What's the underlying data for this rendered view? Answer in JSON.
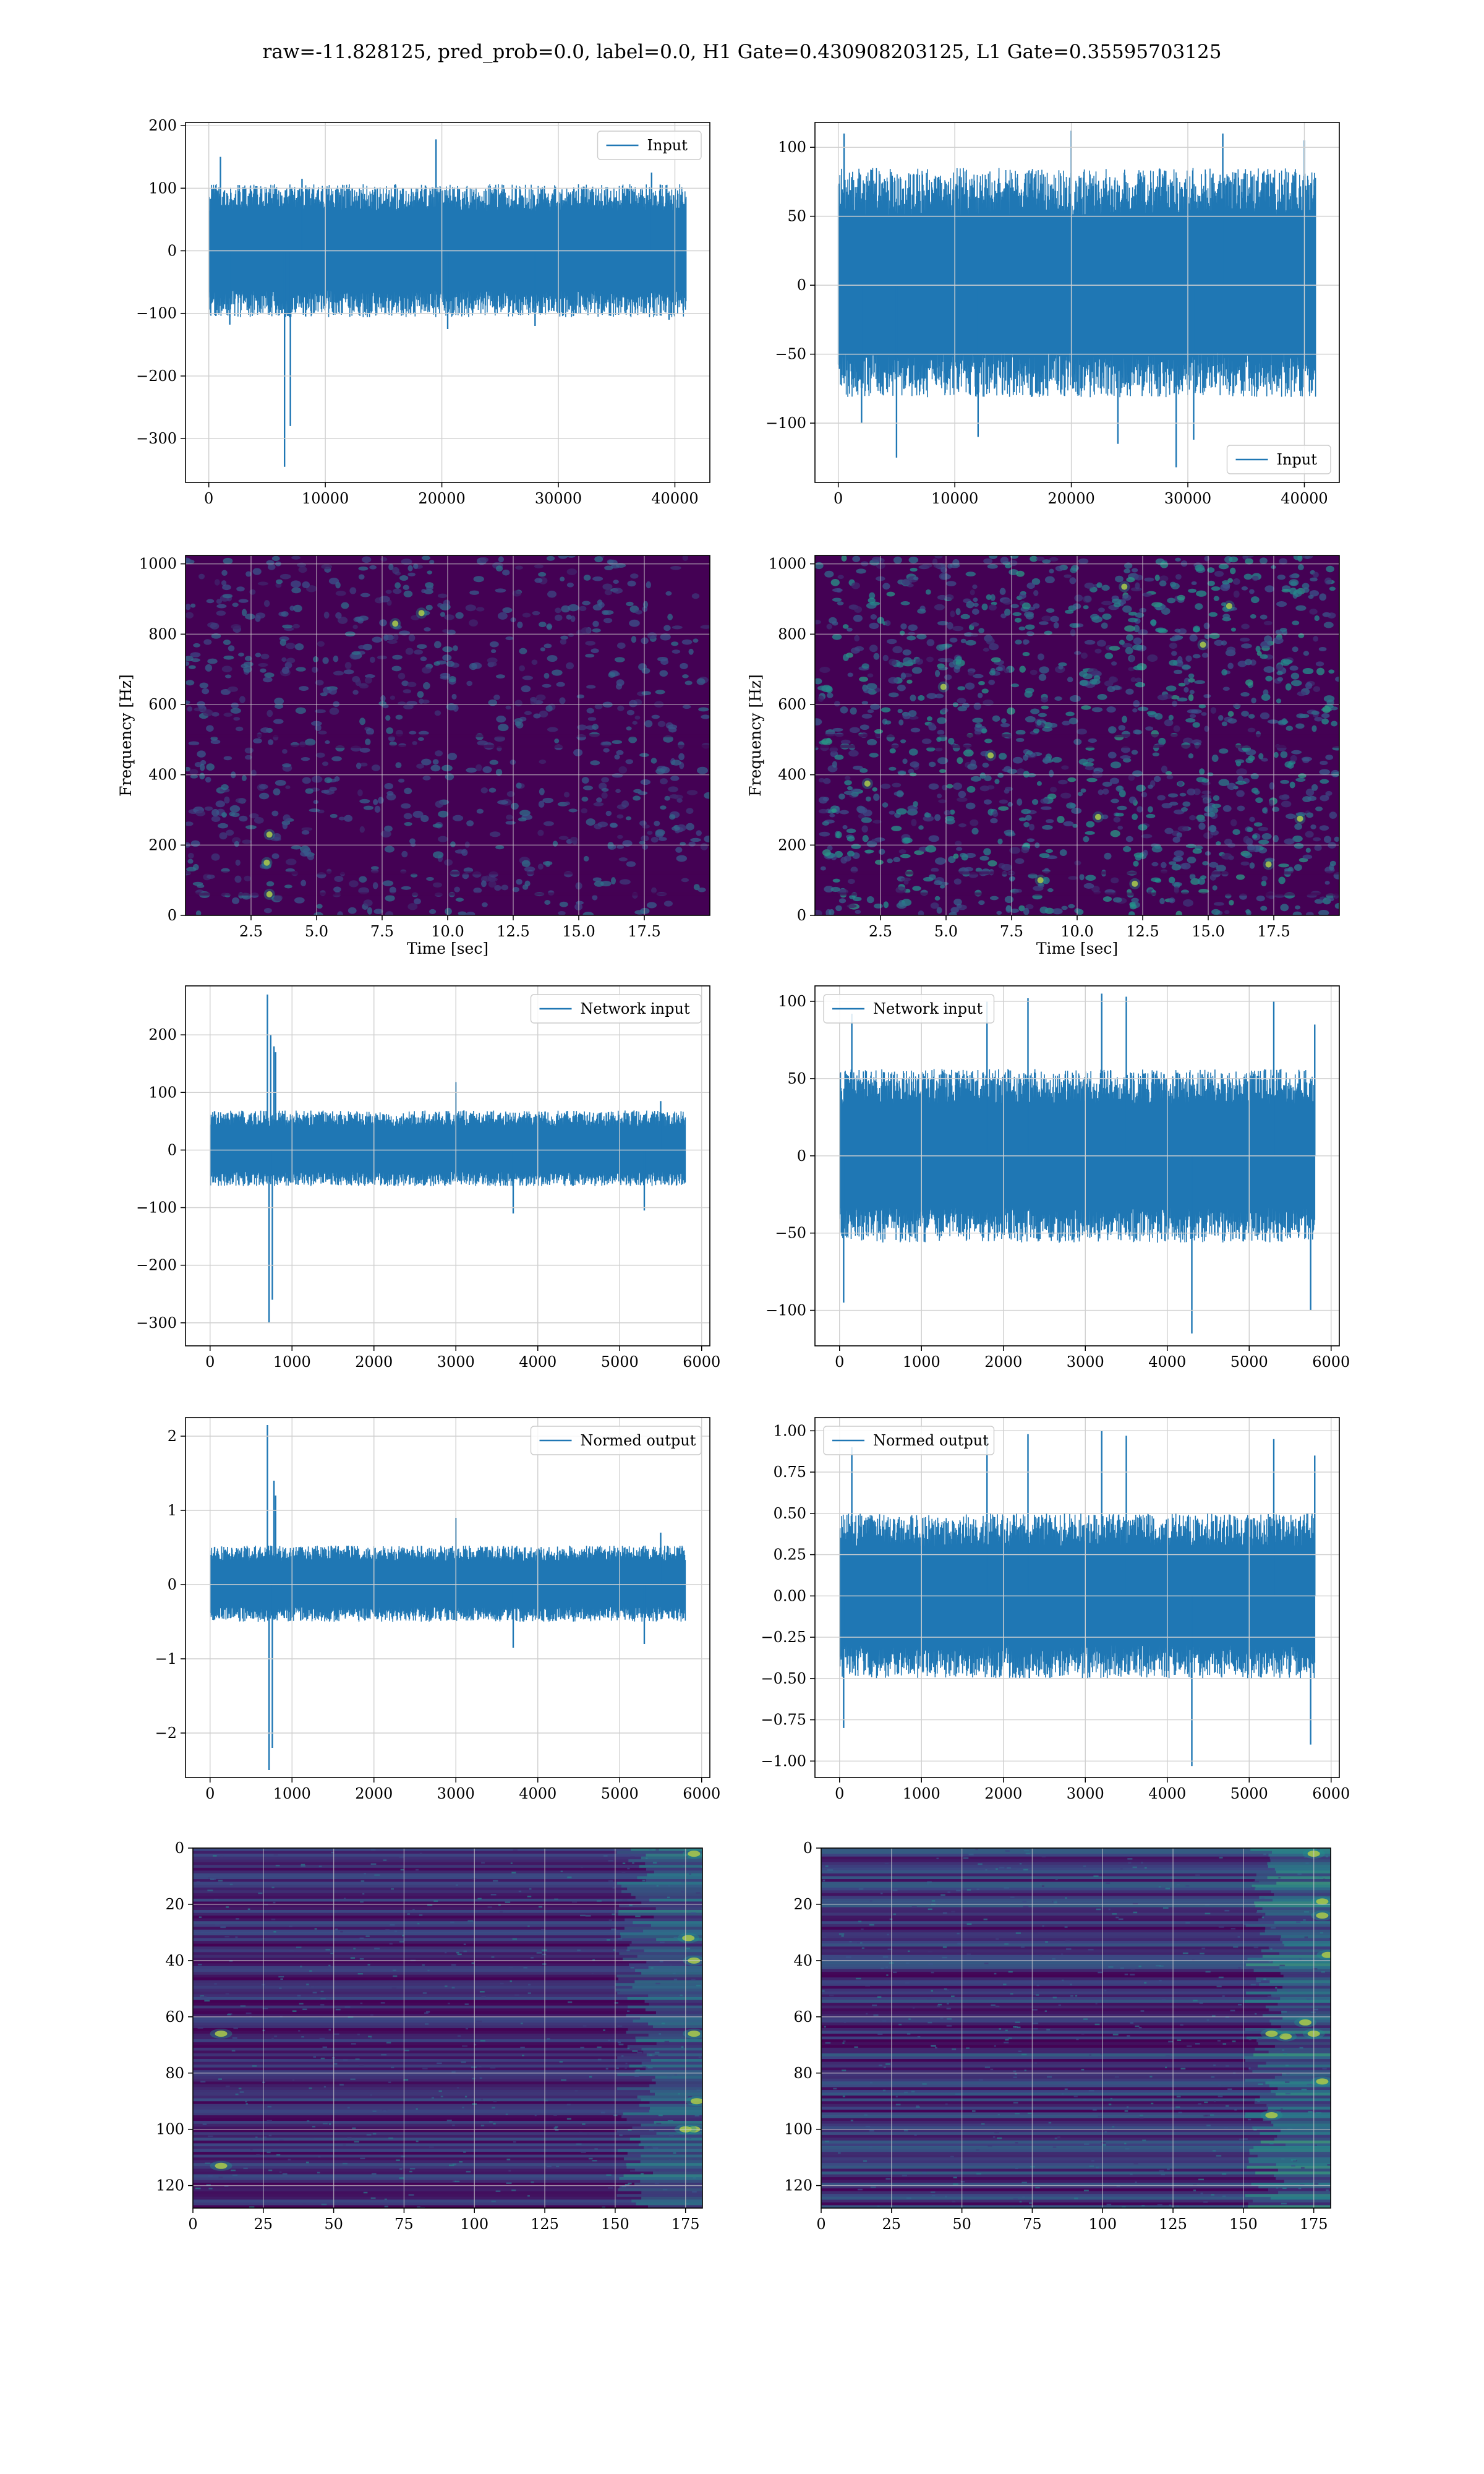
{
  "suptitle": "raw=-11.828125, pred_prob=0.0, label=0.0, H1 Gate=0.430908203125, L1 Gate=0.35595703125",
  "colors": {
    "line": "#1f77b4",
    "grid": "#d0d0d0",
    "viridis_low": "#440154",
    "viridis_mid": "#21918c",
    "viridis_high": "#fde725"
  },
  "chart_data": [
    {
      "id": "h1-input",
      "type": "line",
      "legend": "Input",
      "legend_loc": "upper right",
      "xlim": [
        -2000,
        43000
      ],
      "ylim": [
        -370,
        205
      ],
      "xticks": [
        0,
        10000,
        20000,
        30000,
        40000
      ],
      "yticks": [
        -300,
        -200,
        -100,
        0,
        100,
        200
      ],
      "x": [
        0,
        40960
      ],
      "band": [
        -85,
        85
      ],
      "spikes": [
        [
          1000,
          150
        ],
        [
          1800,
          -118
        ],
        [
          6500,
          -345
        ],
        [
          7000,
          -280
        ],
        [
          8000,
          115
        ],
        [
          19500,
          178
        ],
        [
          20500,
          -125
        ],
        [
          28000,
          -120
        ],
        [
          38000,
          125
        ],
        [
          39500,
          -110
        ]
      ],
      "grid": true
    },
    {
      "id": "l1-input",
      "type": "line",
      "legend": "Input",
      "legend_loc": "lower right",
      "xlim": [
        -2000,
        43000
      ],
      "ylim": [
        -143,
        118
      ],
      "xticks": [
        0,
        10000,
        20000,
        30000,
        40000
      ],
      "yticks": [
        -100,
        -50,
        0,
        50,
        100
      ],
      "x": [
        0,
        40960
      ],
      "band": [
        -65,
        68
      ],
      "spikes": [
        [
          500,
          110
        ],
        [
          2000,
          -100
        ],
        [
          5000,
          -125
        ],
        [
          12000,
          -110
        ],
        [
          20000,
          112
        ],
        [
          24000,
          -115
        ],
        [
          29000,
          -132
        ],
        [
          30500,
          -112
        ],
        [
          33000,
          110
        ],
        [
          40000,
          105
        ]
      ],
      "grid": true
    },
    {
      "id": "h1-spectrogram",
      "type": "heatmap",
      "colormap": "viridis",
      "xlim": [
        0,
        20
      ],
      "ylim": [
        0,
        1024
      ],
      "xticks": [
        2.5,
        5.0,
        7.5,
        10.0,
        12.5,
        15.0,
        17.5
      ],
      "yticks": [
        0,
        200,
        400,
        600,
        800,
        1000
      ],
      "xlabel": "Time [sec]",
      "ylabel": "Frequency [Hz]",
      "hotspots": [
        [
          3.2,
          60
        ],
        [
          3.1,
          150
        ],
        [
          3.2,
          230
        ],
        [
          9.0,
          860
        ],
        [
          8.0,
          830
        ]
      ],
      "grid": true
    },
    {
      "id": "l1-spectrogram",
      "type": "heatmap",
      "colormap": "viridis",
      "xlim": [
        0,
        20
      ],
      "ylim": [
        0,
        1024
      ],
      "xticks": [
        2.5,
        5.0,
        7.5,
        10.0,
        12.5,
        15.0,
        17.5
      ],
      "yticks": [
        0,
        200,
        400,
        600,
        800,
        1000
      ],
      "xlabel": "Time [sec]",
      "ylabel": "Frequency [Hz]",
      "hotspots": [
        [
          11.8,
          935
        ],
        [
          14.8,
          770
        ],
        [
          15.8,
          880
        ],
        [
          10.8,
          280
        ],
        [
          6.7,
          455
        ],
        [
          2.0,
          375
        ],
        [
          18.5,
          275
        ],
        [
          12.2,
          90
        ],
        [
          8.6,
          100
        ],
        [
          17.3,
          145
        ],
        [
          4.9,
          650
        ]
      ],
      "grid": true
    },
    {
      "id": "h1-network-input",
      "type": "line",
      "legend": "Network input",
      "legend_loc": "upper right",
      "xlim": [
        -300,
        6100
      ],
      "ylim": [
        -340,
        285
      ],
      "xticks": [
        0,
        1000,
        2000,
        3000,
        4000,
        5000,
        6000
      ],
      "yticks": [
        -300,
        -200,
        -100,
        0,
        100,
        200
      ],
      "x": [
        0,
        5800
      ],
      "band": [
        -50,
        55
      ],
      "spikes": [
        [
          700,
          270
        ],
        [
          720,
          -300
        ],
        [
          760,
          -260
        ],
        [
          780,
          180
        ],
        [
          800,
          170
        ],
        [
          740,
          200
        ],
        [
          3000,
          118
        ],
        [
          3700,
          -110
        ],
        [
          5300,
          -105
        ],
        [
          5500,
          85
        ]
      ],
      "grid": true
    },
    {
      "id": "l1-network-input",
      "type": "line",
      "legend": "Network input",
      "legend_loc": "upper left",
      "xlim": [
        -300,
        6100
      ],
      "ylim": [
        -123,
        110
      ],
      "xticks": [
        0,
        1000,
        2000,
        3000,
        4000,
        5000,
        6000
      ],
      "yticks": [
        -100,
        -50,
        0,
        50,
        100
      ],
      "x": [
        0,
        5800
      ],
      "band": [
        -45,
        45
      ],
      "spikes": [
        [
          50,
          -95
        ],
        [
          150,
          92
        ],
        [
          1800,
          100
        ],
        [
          2300,
          102
        ],
        [
          3200,
          105
        ],
        [
          3500,
          103
        ],
        [
          4300,
          -115
        ],
        [
          5300,
          100
        ],
        [
          5750,
          -100
        ],
        [
          5800,
          85
        ]
      ],
      "grid": true
    },
    {
      "id": "h1-normed-output",
      "type": "line",
      "legend": "Normed output",
      "legend_loc": "upper right",
      "xlim": [
        -300,
        6100
      ],
      "ylim": [
        -2.6,
        2.25
      ],
      "xticks": [
        0,
        1000,
        2000,
        3000,
        4000,
        5000,
        6000
      ],
      "yticks": [
        -2,
        -1,
        0,
        1,
        2
      ],
      "x": [
        0,
        5800
      ],
      "band": [
        -0.4,
        0.42
      ],
      "spikes": [
        [
          700,
          2.15
        ],
        [
          720,
          -2.5
        ],
        [
          760,
          -2.2
        ],
        [
          780,
          1.4
        ],
        [
          800,
          1.2
        ],
        [
          3000,
          0.9
        ],
        [
          3700,
          -0.85
        ],
        [
          5300,
          -0.8
        ],
        [
          5500,
          0.7
        ]
      ],
      "grid": true
    },
    {
      "id": "l1-normed-output",
      "type": "line",
      "legend": "Normed output",
      "legend_loc": "upper left",
      "xlim": [
        -300,
        6100
      ],
      "ylim": [
        -1.1,
        1.08
      ],
      "xticks": [
        0,
        1000,
        2000,
        3000,
        4000,
        5000,
        6000
      ],
      "yticks": [
        -1.0,
        -0.75,
        -0.5,
        -0.25,
        0.0,
        0.25,
        0.5,
        0.75,
        1.0
      ],
      "x": [
        0,
        5800
      ],
      "band": [
        -0.4,
        0.4
      ],
      "spikes": [
        [
          50,
          -0.8
        ],
        [
          150,
          0.9
        ],
        [
          1800,
          0.95
        ],
        [
          2300,
          0.98
        ],
        [
          3200,
          1.0
        ],
        [
          3500,
          0.97
        ],
        [
          4300,
          -1.03
        ],
        [
          5300,
          0.95
        ],
        [
          5750,
          -0.9
        ],
        [
          5800,
          0.85
        ]
      ],
      "grid": true
    },
    {
      "id": "h1-feature-map",
      "type": "heatmap",
      "colormap": "viridis",
      "xlim": [
        0,
        181
      ],
      "ylim": [
        128,
        0
      ],
      "xticks": [
        0,
        25,
        50,
        75,
        100,
        125,
        150,
        175
      ],
      "yticks": [
        0,
        20,
        40,
        60,
        80,
        100,
        120
      ],
      "hotspots": [
        [
          178,
          2
        ],
        [
          176,
          32
        ],
        [
          178,
          40
        ],
        [
          178,
          66
        ],
        [
          179,
          90
        ],
        [
          178,
          100
        ],
        [
          175,
          100
        ],
        [
          10,
          66
        ],
        [
          10,
          113
        ]
      ],
      "grid": true
    },
    {
      "id": "l1-feature-map",
      "type": "heatmap",
      "colormap": "viridis",
      "xlim": [
        0,
        181
      ],
      "ylim": [
        128,
        0
      ],
      "xticks": [
        0,
        25,
        50,
        75,
        100,
        125,
        150,
        175
      ],
      "yticks": [
        0,
        20,
        40,
        60,
        80,
        100,
        120
      ],
      "hotspots": [
        [
          175,
          2
        ],
        [
          178,
          19
        ],
        [
          178,
          24
        ],
        [
          180,
          38
        ],
        [
          172,
          62
        ],
        [
          175,
          66
        ],
        [
          165,
          67
        ],
        [
          178,
          83
        ],
        [
          160,
          66
        ],
        [
          160,
          95
        ]
      ],
      "grid": true
    }
  ]
}
